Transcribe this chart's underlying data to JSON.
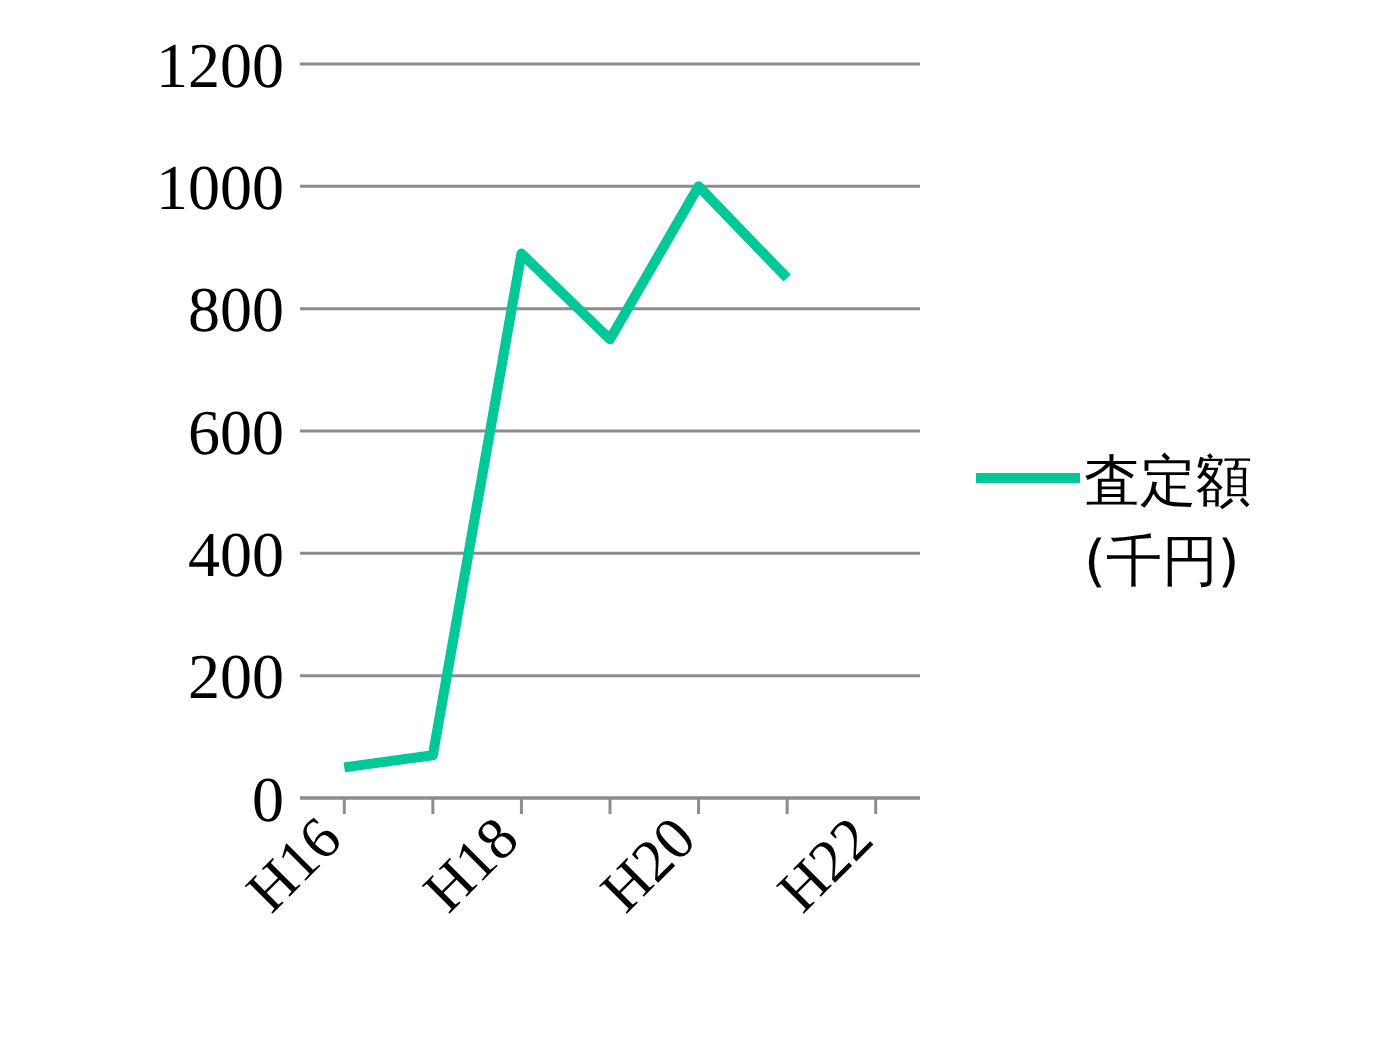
{
  "chart_data": {
    "type": "line",
    "categories": [
      "H16",
      null,
      "H18",
      null,
      "H20",
      null,
      "H22"
    ],
    "series": [
      {
        "name": "査定額 (千円)",
        "color": "#00c896",
        "values": [
          50,
          70,
          890,
          750,
          1000,
          850,
          null
        ]
      }
    ],
    "ylim": [
      0,
      1200
    ],
    "yticks": [
      0,
      200,
      400,
      600,
      800,
      1000,
      1200
    ],
    "grid": "y",
    "legend": "right",
    "marker": "none",
    "line_style": "solid"
  }
}
